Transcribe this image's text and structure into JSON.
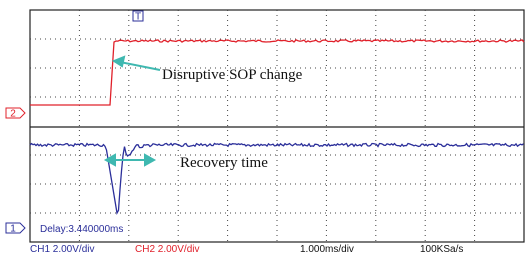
{
  "markers": {
    "trigger": "T",
    "ch2": "2",
    "ch1": "1"
  },
  "annotations": {
    "sop_change": "Disruptive SOP change",
    "recovery": "Recovery time"
  },
  "screen": {
    "delay": "Delay:3.440000ms"
  },
  "status_bar": {
    "ch1": "CH1 2.00V/div",
    "ch2": "CH2 2.00V/div",
    "timebase": "1.000ms/div",
    "sample_rate": "100KSa/s"
  }
}
